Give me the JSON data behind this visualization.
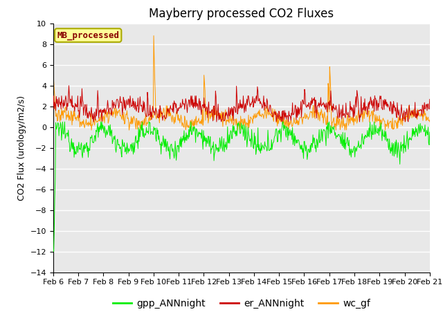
{
  "title": "Mayberry processed CO2 Fluxes",
  "ylabel": "CO2 Flux (urology/m2/s)",
  "ylim": [
    -14,
    10
  ],
  "yticks": [
    -14,
    -12,
    -10,
    -8,
    -6,
    -4,
    -2,
    0,
    2,
    4,
    6,
    8,
    10
  ],
  "n_points": 720,
  "colors": {
    "gpp": "#00ee00",
    "er": "#cc0000",
    "wc": "#ff9900"
  },
  "legend_labels": [
    "gpp_ANNnight",
    "er_ANNnight",
    "wc_gf"
  ],
  "inset_label": "MB_processed",
  "inset_label_color": "#880000",
  "inset_box_facecolor": "#ffff99",
  "inset_box_edgecolor": "#aaaa00",
  "bg_color": "#e8e8e8",
  "fig_bg": "#ffffff",
  "title_fontsize": 12,
  "axis_fontsize": 9,
  "tick_fontsize": 8,
  "legend_fontsize": 10
}
